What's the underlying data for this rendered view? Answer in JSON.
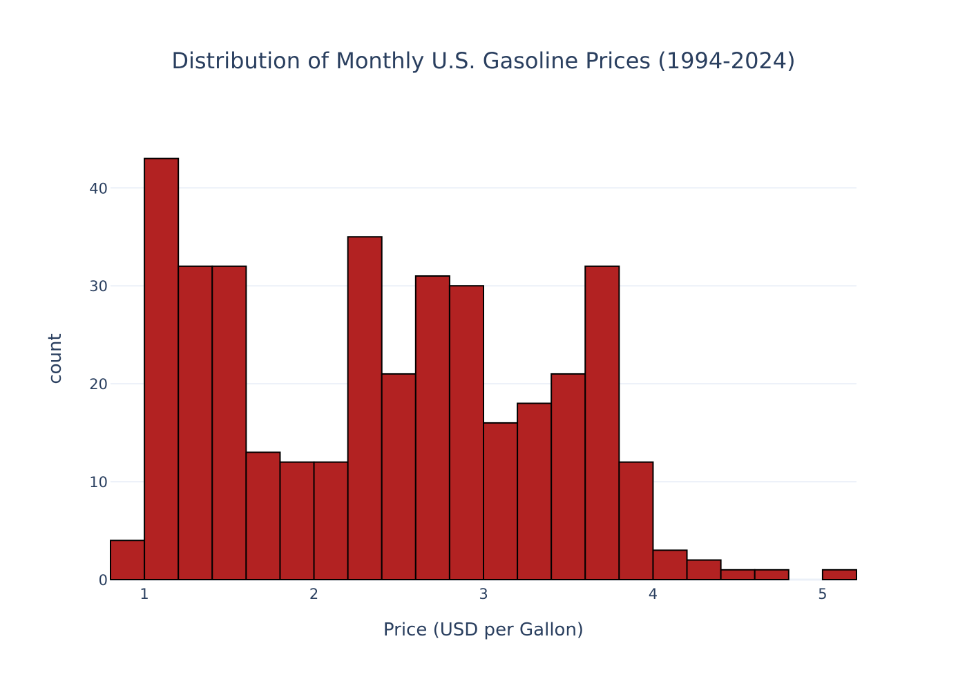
{
  "chart_data": {
    "type": "histogram",
    "title": "Distribution of Monthly U.S. Gasoline Prices (1994-2024)",
    "xlabel": "Price (USD per Gallon)",
    "ylabel": "count",
    "xlim": [
      0.8,
      5.2
    ],
    "ylim": [
      0,
      46.5
    ],
    "bin_width": 0.2,
    "bins": [
      {
        "x0": 0.8,
        "x1": 1.0,
        "count": 4
      },
      {
        "x0": 1.0,
        "x1": 1.2,
        "count": 43
      },
      {
        "x0": 1.2,
        "x1": 1.4,
        "count": 32
      },
      {
        "x0": 1.4,
        "x1": 1.6,
        "count": 32
      },
      {
        "x0": 1.6,
        "x1": 1.8,
        "count": 13
      },
      {
        "x0": 1.8,
        "x1": 2.0,
        "count": 12
      },
      {
        "x0": 2.0,
        "x1": 2.2,
        "count": 12
      },
      {
        "x0": 2.2,
        "x1": 2.4,
        "count": 35
      },
      {
        "x0": 2.4,
        "x1": 2.6,
        "count": 21
      },
      {
        "x0": 2.6,
        "x1": 2.8,
        "count": 31
      },
      {
        "x0": 2.8,
        "x1": 3.0,
        "count": 30
      },
      {
        "x0": 3.0,
        "x1": 3.2,
        "count": 16
      },
      {
        "x0": 3.2,
        "x1": 3.4,
        "count": 18
      },
      {
        "x0": 3.4,
        "x1": 3.6,
        "count": 21
      },
      {
        "x0": 3.6,
        "x1": 3.8,
        "count": 32
      },
      {
        "x0": 3.8,
        "x1": 4.0,
        "count": 12
      },
      {
        "x0": 4.0,
        "x1": 4.2,
        "count": 3
      },
      {
        "x0": 4.2,
        "x1": 4.4,
        "count": 2
      },
      {
        "x0": 4.4,
        "x1": 4.6,
        "count": 1
      },
      {
        "x0": 4.6,
        "x1": 4.8,
        "count": 1
      },
      {
        "x0": 4.8,
        "x1": 5.0,
        "count": 0
      },
      {
        "x0": 5.0,
        "x1": 5.2,
        "count": 1
      }
    ],
    "x_ticks": [
      1,
      2,
      3,
      4,
      5
    ],
    "y_ticks": [
      0,
      10,
      20,
      30,
      40
    ],
    "bar_color": "#b22222",
    "bar_outline_color": "#000000",
    "grid": true,
    "legend": false
  }
}
